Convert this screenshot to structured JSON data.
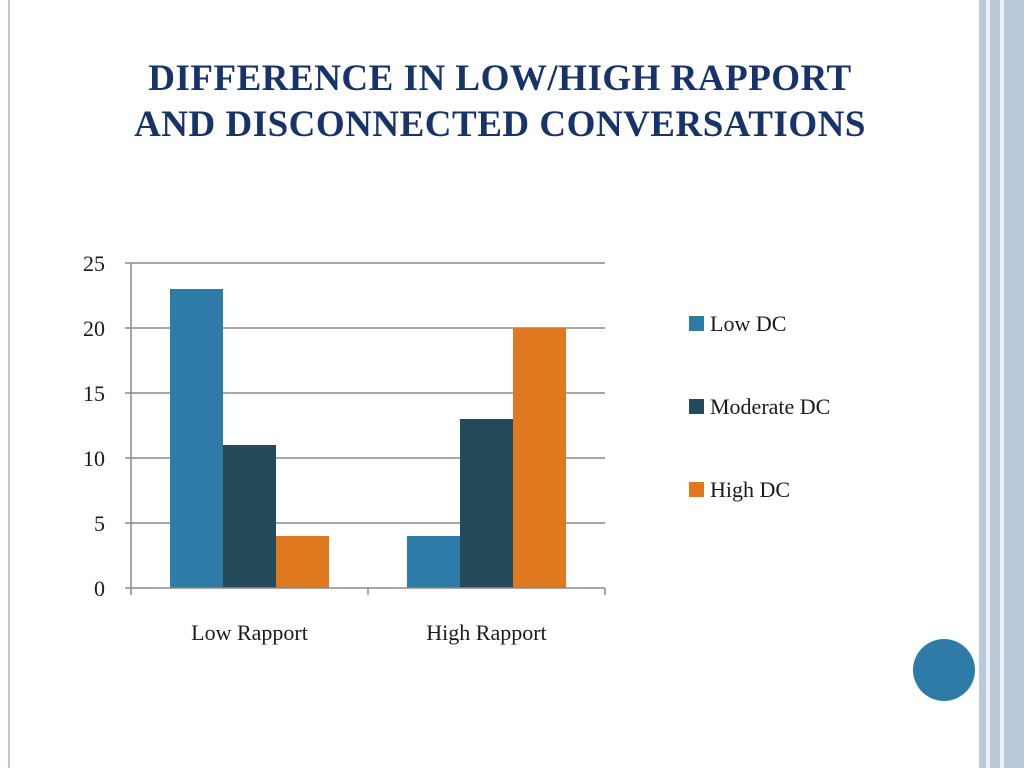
{
  "slide": {
    "title_line_1": "DIFFERENCE IN LOW/HIGH RAPPORT",
    "title_line_2": "AND DISCONNECTED CONVERSATIONS"
  },
  "chart_data": {
    "type": "bar",
    "categories": [
      "Low Rapport",
      "High Rapport"
    ],
    "series": [
      {
        "name": "Low DC",
        "values": [
          23,
          4
        ],
        "color": "#2e7ba8"
      },
      {
        "name": "Moderate DC",
        "values": [
          11,
          13
        ],
        "color": "#254b5b"
      },
      {
        "name": "High DC",
        "values": [
          4,
          20
        ],
        "color": "#e07820"
      }
    ],
    "ylim": [
      0,
      25
    ],
    "yticks": [
      0,
      5,
      10,
      15,
      20,
      25
    ],
    "grid": true,
    "legend_position": "right"
  },
  "colors": {
    "title": "#17336a",
    "accent_dot": "#2e7ba8"
  }
}
